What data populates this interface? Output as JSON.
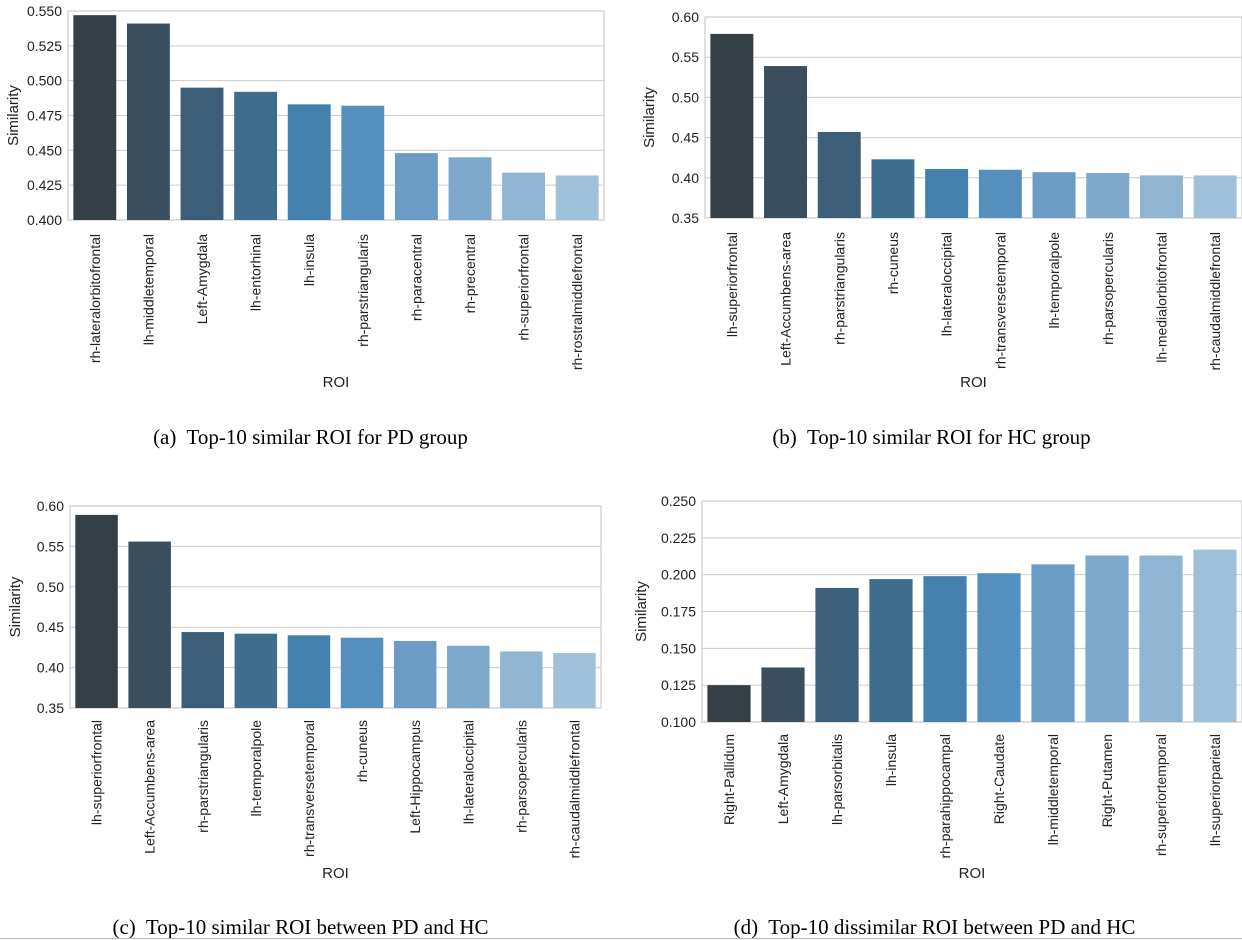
{
  "chart_data": [
    {
      "type": "bar",
      "caption_label": "(a)",
      "caption": "Top-10 similar ROI for PD group",
      "xlabel": "ROI",
      "ylabel": "Similarity",
      "ylim": [
        0.4,
        0.55
      ],
      "yticks": [
        "0.400",
        "0.425",
        "0.450",
        "0.475",
        "0.500",
        "0.525",
        "0.550"
      ],
      "grid": true,
      "categories": [
        "rh-lateralorbitofrontal",
        "lh-middletemporal",
        "Left-Amygdala",
        "lh-entorhinal",
        "lh-insula",
        "rh-parstriangularis",
        "rh-paracentral",
        "rh-precentral",
        "rh-superiorfrontal",
        "rh-rostralmiddlefrontal"
      ],
      "values": [
        0.547,
        0.541,
        0.495,
        0.492,
        0.483,
        0.482,
        0.448,
        0.445,
        0.434,
        0.432
      ]
    },
    {
      "type": "bar",
      "caption_label": "(b)",
      "caption": "Top-10 similar ROI for HC group",
      "xlabel": "ROI",
      "ylabel": "Similarity",
      "ylim": [
        0.35,
        0.6
      ],
      "yticks": [
        "0.35",
        "0.40",
        "0.45",
        "0.50",
        "0.55",
        "0.60"
      ],
      "grid": true,
      "categories": [
        "lh-superiorfrontal",
        "Left-Accumbens-area",
        "rh-parstriangularis",
        "rh-cuneus",
        "lh-lateraloccipital",
        "rh-transversetemporal",
        "lh-temporalpole",
        "rh-parsopercularis",
        "lh-medialorbitofrontal",
        "rh-caudalmiddlefrontal"
      ],
      "values": [
        0.579,
        0.539,
        0.457,
        0.423,
        0.411,
        0.41,
        0.407,
        0.406,
        0.403,
        0.403
      ]
    },
    {
      "type": "bar",
      "caption_label": "(c)",
      "caption": "Top-10 similar ROI between PD and HC",
      "xlabel": "ROI",
      "ylabel": "Similarity",
      "ylim": [
        0.35,
        0.6
      ],
      "yticks": [
        "0.35",
        "0.40",
        "0.45",
        "0.50",
        "0.55",
        "0.60"
      ],
      "grid": true,
      "categories": [
        "lh-superiorfrontal",
        "Left-Accumbens-area",
        "rh-parstriangularis",
        "lh-temporalpole",
        "rh-transversetemporal",
        "rh-cuneus",
        "Left-Hippocampus",
        "lh-lateraloccipital",
        "rh-parsopercularis",
        "rh-caudalmiddlefrontal"
      ],
      "values": [
        0.589,
        0.556,
        0.444,
        0.442,
        0.44,
        0.437,
        0.433,
        0.427,
        0.42,
        0.418
      ]
    },
    {
      "type": "bar",
      "caption_label": "(d)",
      "caption": "Top-10 dissimilar ROI between PD and HC",
      "xlabel": "ROI",
      "ylabel": "Similarity",
      "ylim": [
        0.1,
        0.25
      ],
      "yticks": [
        "0.100",
        "0.125",
        "0.150",
        "0.175",
        "0.200",
        "0.225",
        "0.250"
      ],
      "grid": true,
      "categories": [
        "Right-Pallidum",
        "Left-Amygdala",
        "lh-parsorbitalis",
        "lh-insula",
        "rh-parahippocampal",
        "Right-Caudate",
        "lh-middletemporal",
        "Right-Putamen",
        "rh-superiortemporal",
        "lh-superiorparietal"
      ],
      "values": [
        0.125,
        0.137,
        0.191,
        0.197,
        0.199,
        0.201,
        0.207,
        0.213,
        0.213,
        0.217
      ]
    }
  ],
  "palette": [
    "#353f46",
    "#3b4e5e",
    "#3d5e78",
    "#3e6d8d",
    "#4380ac",
    "#548fbd",
    "#6a9cc5",
    "#7da8cb",
    "#8fb5d3",
    "#9fc2da"
  ],
  "grid_color": "#cccccc",
  "axis_color": "#cccccc",
  "text_color": "#222222"
}
